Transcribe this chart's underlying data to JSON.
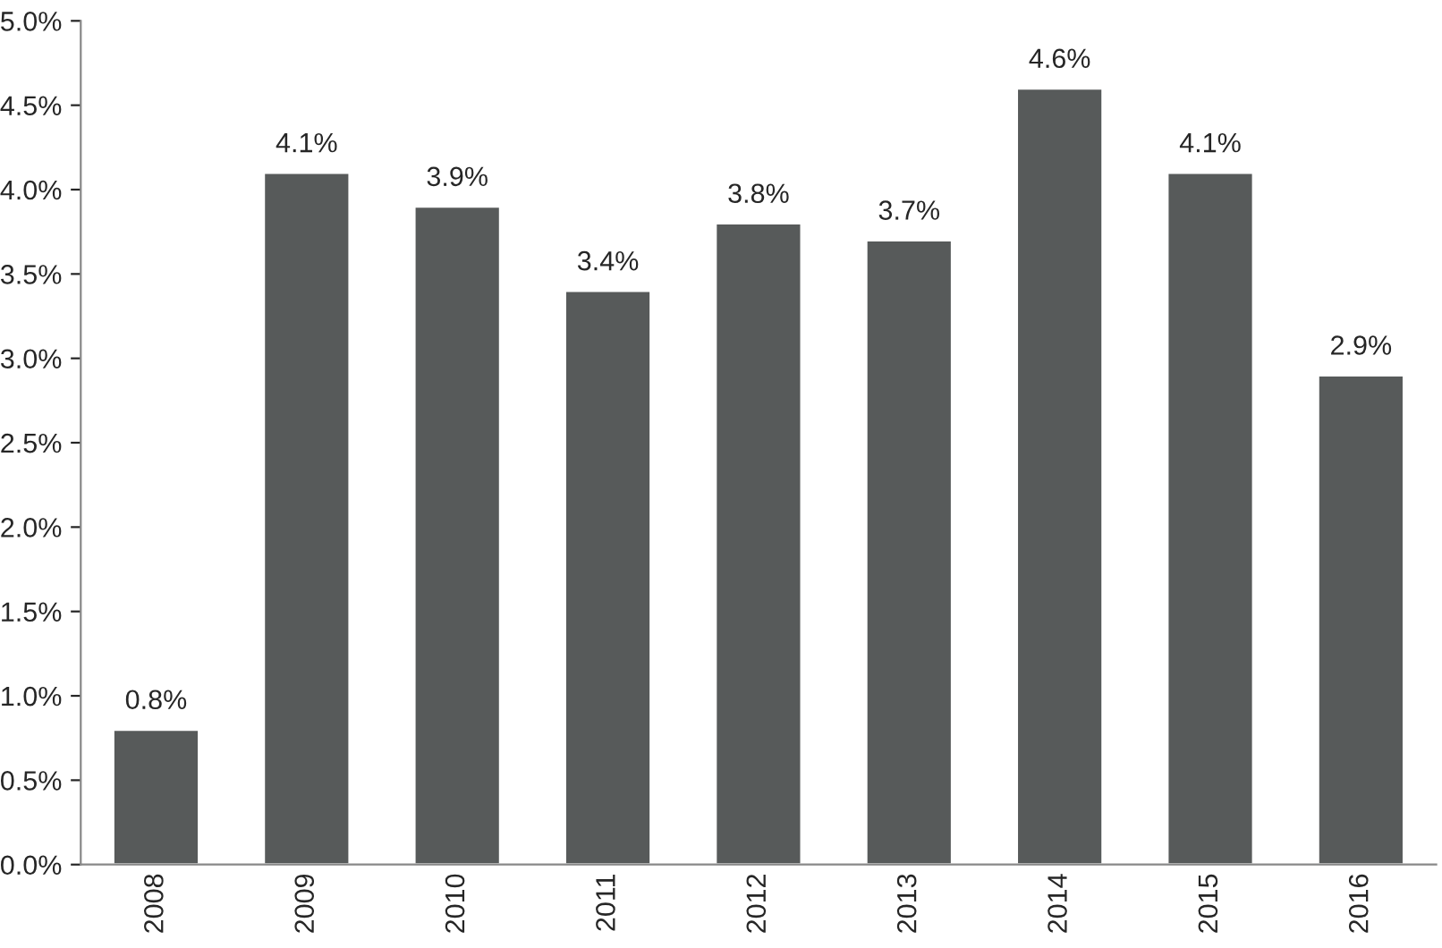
{
  "chart_data": {
    "type": "bar",
    "categories": [
      "2008",
      "2009",
      "2010",
      "2011",
      "2012",
      "2013",
      "2014",
      "2015",
      "2016"
    ],
    "values": [
      0.8,
      4.1,
      3.9,
      3.4,
      3.8,
      3.7,
      4.6,
      4.1,
      2.9
    ],
    "value_labels": [
      "0.8%",
      "4.1%",
      "3.9%",
      "3.4%",
      "3.8%",
      "3.7%",
      "4.6%",
      "4.1%",
      "2.9%"
    ],
    "color": "#575a5a",
    "ylim": [
      0,
      5
    ],
    "yticks": [
      {
        "value": 0,
        "label": "0.0%"
      },
      {
        "value": 0.5,
        "label": "0.5%"
      },
      {
        "value": 1,
        "label": "1.0%"
      },
      {
        "value": 1.5,
        "label": "1.5%"
      },
      {
        "value": 2,
        "label": "2.0%"
      },
      {
        "value": 2.5,
        "label": "2.5%"
      },
      {
        "value": 3,
        "label": "3.0%"
      },
      {
        "value": 3.5,
        "label": "3.5%"
      },
      {
        "value": 4,
        "label": "4.0%"
      },
      {
        "value": 4.5,
        "label": "4.5%"
      },
      {
        "value": 5,
        "label": "5.0%"
      }
    ],
    "grid": false
  }
}
